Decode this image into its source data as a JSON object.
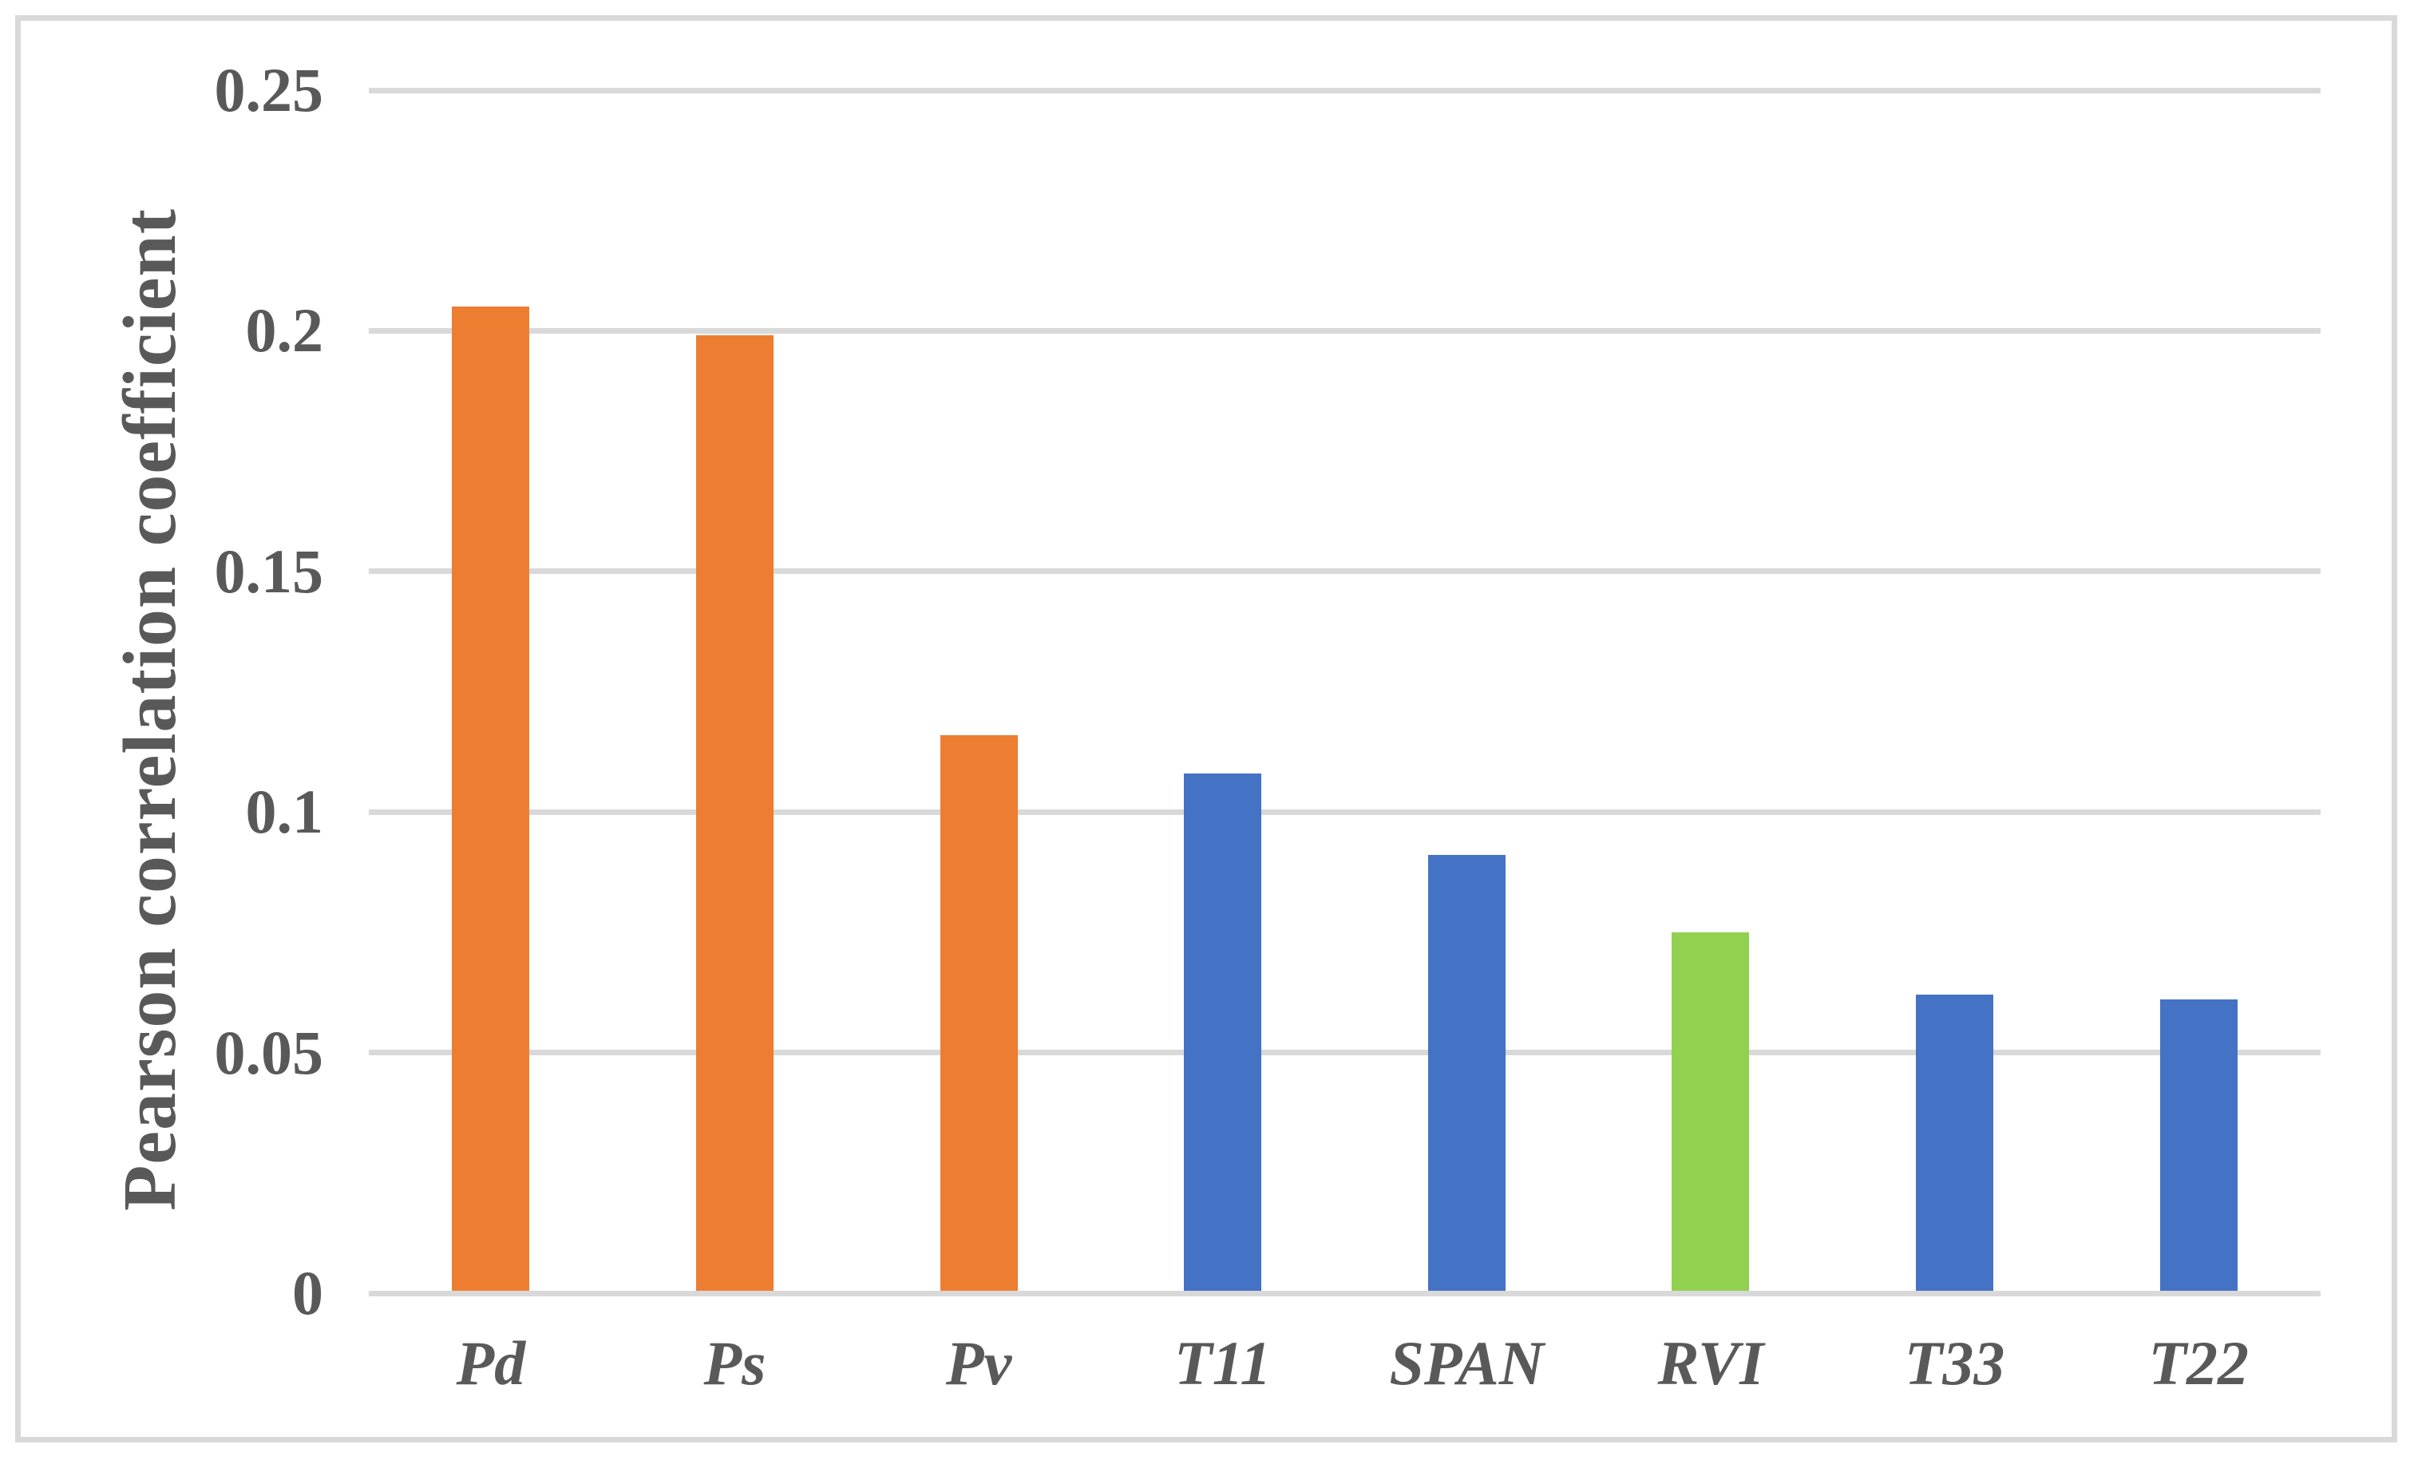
{
  "chart_data": {
    "type": "bar",
    "title": "",
    "xlabel": "",
    "ylabel": "Pearson correlation coefficient",
    "categories": [
      "Pd",
      "Ps",
      "Pv",
      "T11",
      "SPAN",
      "RVI",
      "T33",
      "T22"
    ],
    "values": [
      0.205,
      0.199,
      0.116,
      0.108,
      0.091,
      0.075,
      0.062,
      0.061
    ],
    "series": [
      {
        "name": "Pearson correlation coefficient",
        "values": [
          0.205,
          0.199,
          0.116,
          0.108,
          0.091,
          0.075,
          0.062,
          0.061
        ]
      }
    ],
    "bar_colors": [
      "#ED7D31",
      "#ED7D31",
      "#ED7D31",
      "#4472C4",
      "#4472C4",
      "#92D050",
      "#4472C4",
      "#4472C4"
    ],
    "ylim": [
      0,
      0.25
    ],
    "ytick_labels": [
      "0",
      "0.05",
      "0.1",
      "0.15",
      "0.2",
      "0.25"
    ],
    "grid": true,
    "legend_position": "none",
    "colors": {
      "orange_series": "#ED7D31",
      "blue_series": "#4472C4",
      "green_series": "#92D050",
      "gridline": "#D9D9D9",
      "axis_line": "#D9D9D9",
      "frame_border": "#D9D9D9",
      "text": "#595959",
      "background": "#FFFFFF"
    }
  }
}
